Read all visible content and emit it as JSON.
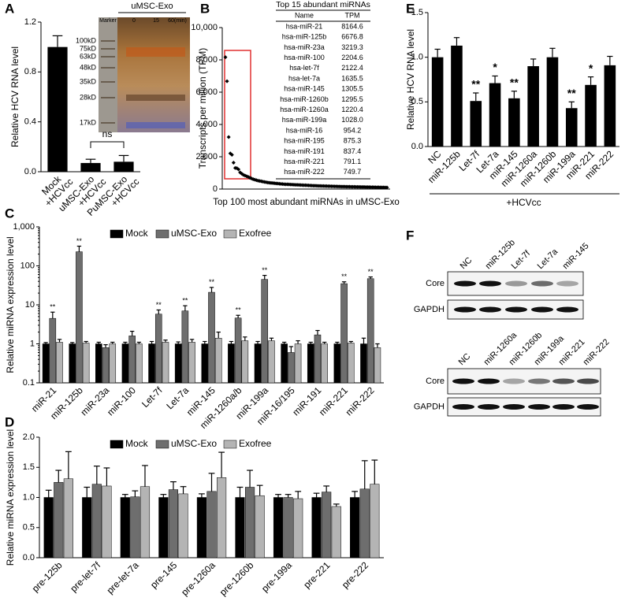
{
  "chart_data": [
    {
      "type": "bar",
      "panel": "A",
      "y_label": "Relative HCV RNA level",
      "categories": [
        [
          "Mock",
          "+HCVcc"
        ],
        [
          "uMSC-Exo",
          "+HCVcc"
        ],
        [
          "PuMSC-Exo",
          "+HCVcc"
        ]
      ],
      "values": [
        1.0,
        0.07,
        0.08
      ],
      "errors": [
        0.09,
        0.03,
        0.05
      ],
      "color": "#000000",
      "ylim": [
        0,
        1.2
      ],
      "yticks": [
        {
          "value": 0,
          "label": "0.0"
        },
        {
          "value": 0.4,
          "label": "0.4"
        },
        {
          "value": 0.8,
          "label": "0.8"
        },
        {
          "value": 1.2,
          "label": "1.2"
        }
      ],
      "annotation": "ns",
      "inset": {
        "title": "uMSC-Exo",
        "lanes": [
          "Marker",
          "0",
          "15",
          "60(min)"
        ],
        "markers": [
          "100kD",
          "75kD",
          "63kD",
          "48kD",
          "35kD",
          "28kD",
          "17kD"
        ]
      }
    },
    {
      "type": "scatter",
      "panel": "B",
      "y_label": "Transcripts per million (TPM)",
      "x_label": "Top 100 most abundant miRNAs in uMSC-Exo",
      "color": "#000000",
      "values": [
        8164.6,
        6676.8,
        3219.3,
        2204.6,
        2122.4,
        1635.5,
        1305.5,
        1295.5,
        1220.4,
        1028.0,
        954.2,
        875.3,
        837.4,
        791.1,
        749.7,
        700,
        650,
        610,
        580,
        550,
        520,
        500,
        480,
        460,
        440,
        420,
        400,
        390,
        380,
        370,
        360,
        350,
        340,
        330,
        320,
        310,
        300,
        295,
        290,
        285,
        280,
        275,
        270,
        265,
        260,
        255,
        250,
        245,
        240,
        235,
        230,
        225,
        220,
        215,
        210,
        205,
        200,
        197,
        194,
        191,
        188,
        185,
        182,
        179,
        176,
        173,
        170,
        167,
        164,
        161,
        158,
        155,
        152,
        150,
        148,
        146,
        144,
        142,
        140,
        138,
        136,
        134,
        132,
        130,
        128,
        126,
        124,
        122,
        120,
        118,
        116,
        114,
        112,
        110,
        108,
        106,
        104,
        102,
        100,
        98
      ],
      "ylim": [
        0,
        10000
      ],
      "yticks": [
        0,
        {
          "value": 2000,
          "label": "2,000"
        },
        {
          "value": 4000,
          "label": "4,000"
        },
        {
          "value": 6000,
          "label": "6,000"
        },
        {
          "value": 8000,
          "label": "8,000"
        },
        {
          "value": 10000,
          "label": "10,000"
        }
      ],
      "table": {
        "title": "Top 15 abundant miRNAs",
        "columns": [
          "Name",
          "TPM"
        ],
        "rows": [
          [
            "hsa-miR-21",
            "8164.6"
          ],
          [
            "hsa-miR-125b",
            "6676.8"
          ],
          [
            "hsa-miR-23a",
            "3219.3"
          ],
          [
            "hsa-miR-100",
            "2204.6"
          ],
          [
            "hsa-let-7f",
            "2122.4"
          ],
          [
            "hsa-let-7a",
            "1635.5"
          ],
          [
            "hsa-miR-145",
            "1305.5"
          ],
          [
            "hsa-miR-1260b",
            "1295.5"
          ],
          [
            "hsa-miR-1260a",
            "1220.4"
          ],
          [
            "hsa-miR-199a",
            "1028.0"
          ],
          [
            "hsa-miR-16",
            "954.2"
          ],
          [
            "hsa-miR-195",
            "875.3"
          ],
          [
            "hsa-miR-191",
            "837.4"
          ],
          [
            "hsa-miR-221",
            "791.1"
          ],
          [
            "hsa-miR-222",
            "749.7"
          ]
        ]
      }
    },
    {
      "type": "grouped_bar",
      "panel": "C",
      "y_label": "Relative miRNA expression level",
      "log_scale": true,
      "categories": [
        "miR-21",
        "miR-125b",
        "miR-23a",
        "miR-100",
        "Let-7f",
        "Let-7a",
        "miR-145",
        "miR-1260a/b",
        "miR-199a",
        "miR-16/195",
        "miR-191",
        "miR-221",
        "miR-222"
      ],
      "series": [
        {
          "name": "Mock",
          "color": "#000000",
          "values": [
            1,
            1,
            1,
            1,
            1,
            1,
            1,
            1,
            1,
            1,
            1,
            1,
            1
          ],
          "errors": [
            0.08,
            0.08,
            0.1,
            0.1,
            0.15,
            0.12,
            0.15,
            0.15,
            0.15,
            0.1,
            0.1,
            0.1,
            0.4
          ]
        },
        {
          "name": "uMSC-Exo",
          "color": "#6e6e6e",
          "values": [
            4.5,
            230,
            0.8,
            1.6,
            5.8,
            7,
            21,
            4.6,
            45,
            0.6,
            1.7,
            35,
            47
          ],
          "errors": [
            2,
            90,
            0.15,
            0.5,
            1.6,
            2.5,
            7,
            0.8,
            12,
            0.25,
            0.5,
            4,
            5
          ]
        },
        {
          "name": "Exofree",
          "color": "#b4b4b4",
          "values": [
            1.1,
            1.05,
            1.0,
            1.0,
            1.1,
            1.1,
            1.4,
            1.2,
            1.2,
            1.0,
            1.0,
            1.05,
            0.8
          ],
          "errors": [
            0.2,
            0.1,
            0.1,
            0.1,
            0.15,
            0.2,
            0.6,
            0.3,
            0.2,
            0.2,
            0.1,
            0.1,
            0.2
          ]
        }
      ],
      "significance": [
        "**",
        "**",
        null,
        null,
        "**",
        "**",
        "**",
        "**",
        "**",
        null,
        null,
        "**",
        "**"
      ],
      "ylim": [
        0.1,
        1000
      ],
      "yticks": [
        0.1,
        1,
        10,
        100,
        {
          "value": 1000,
          "label": "1,000"
        }
      ]
    },
    {
      "type": "grouped_bar",
      "panel": "D",
      "y_label": "Relative miRNA expression level",
      "categories": [
        "pre-125b",
        "pre-let-7f",
        "pre-let-7a",
        "pre-145",
        "pre-1260a",
        "pre-1260b",
        "pre-199a",
        "pre-221",
        "pre-222"
      ],
      "series": [
        {
          "name": "Mock",
          "color": "#000000",
          "values": [
            1,
            1,
            1,
            1,
            1,
            1,
            1,
            1,
            1
          ],
          "errors": [
            0.12,
            0.17,
            0.05,
            0.05,
            0.06,
            0.17,
            0.05,
            0.07,
            0.1
          ]
        },
        {
          "name": "uMSC-Exo",
          "color": "#6e6e6e",
          "values": [
            1.25,
            1.22,
            1.01,
            1.13,
            1.1,
            1.17,
            1.0,
            1.09,
            1.14
          ],
          "errors": [
            0.2,
            0.3,
            0.1,
            0.13,
            0.3,
            0.28,
            0.05,
            0.1,
            0.47
          ]
        },
        {
          "name": "Exofree",
          "color": "#b4b4b4",
          "values": [
            1.31,
            1.19,
            1.18,
            1.06,
            1.33,
            1.03,
            0.98,
            0.85,
            1.22
          ],
          "errors": [
            0.45,
            0.3,
            0.35,
            0.12,
            0.42,
            0.17,
            0.12,
            0.04,
            0.4
          ]
        }
      ],
      "ylim": [
        0,
        2.0
      ],
      "yticks": [
        {
          "value": 0,
          "label": "0.0"
        },
        0.5,
        {
          "value": 1,
          "label": "1.0"
        },
        1.5,
        {
          "value": 2,
          "label": "2.0"
        }
      ]
    },
    {
      "type": "bar",
      "panel": "E",
      "y_label": "Relative HCV RNA level",
      "group_label": "+HCVcc",
      "categories": [
        "NC",
        "miR-125b",
        "Let-7f",
        "Let-7a",
        "miR-145",
        "miR-1260a",
        "miR-1260b",
        "miR-199a",
        "miR-221",
        "miR-222"
      ],
      "values": [
        1.0,
        1.13,
        0.51,
        0.71,
        0.54,
        0.9,
        1.0,
        0.43,
        0.69,
        0.91
      ],
      "errors": [
        0.09,
        0.09,
        0.09,
        0.08,
        0.08,
        0.08,
        0.1,
        0.07,
        0.09,
        0.1
      ],
      "significance": [
        null,
        null,
        "**",
        "*",
        "**",
        null,
        null,
        "**",
        "*",
        null
      ],
      "color": "#000000",
      "ylim": [
        0,
        1.5
      ],
      "yticks": [
        {
          "value": 0,
          "label": "0.0"
        },
        0.5,
        {
          "value": 1,
          "label": "1.0"
        },
        1.5
      ]
    }
  ],
  "western_blot": {
    "panel": "F",
    "blots": [
      {
        "lanes": [
          "NC",
          "miR-125b",
          "Let-7f",
          "Let-7a",
          "miR-145"
        ],
        "rows": [
          "Core",
          "GAPDH"
        ]
      },
      {
        "lanes": [
          "NC",
          "miR-1260a",
          "miR-1260b",
          "miR-199a",
          "miR-221",
          "miR-222"
        ],
        "rows": [
          "Core",
          "GAPDH"
        ]
      }
    ]
  }
}
